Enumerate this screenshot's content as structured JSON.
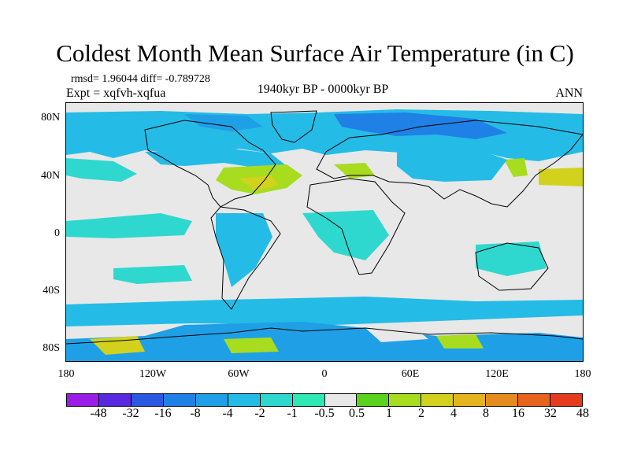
{
  "title": "Coldest Month Mean Surface Air Temperature (in C)",
  "stats": "rmsd= 1.96044 diff= -0.789728",
  "experiment": "Expt = xqfvh-xqfua",
  "period": "1940kyr BP - 0000kyr BP",
  "season": "ANN",
  "map": {
    "lat_labels": [
      "80N",
      "40N",
      "0",
      "40S",
      "80S"
    ],
    "lon_labels": [
      "180",
      "120W",
      "60W",
      "0",
      "60E",
      "120E",
      "180"
    ],
    "background_color": "#e8e8e8",
    "coastline_color": "#000000"
  },
  "colorbar": {
    "colors": [
      "#9a1ee8",
      "#5a28e0",
      "#2a58e0",
      "#1f80e6",
      "#1fa0e6",
      "#24bce6",
      "#2fd8cf",
      "#2fe8b4",
      "#e8e8e8",
      "#5ad21e",
      "#a8dc1e",
      "#d2d21e",
      "#e6b41e",
      "#e68c1e",
      "#e6641e",
      "#e63c1e"
    ],
    "labels": [
      "-48",
      "-32",
      "-16",
      "-8",
      "-4",
      "-2",
      "-1",
      "-0.5",
      "0.5",
      "1",
      "2",
      "4",
      "8",
      "16",
      "32",
      "48"
    ]
  }
}
